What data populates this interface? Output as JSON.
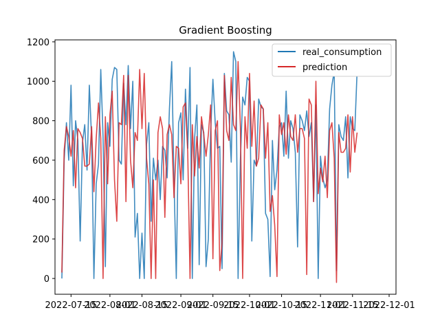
{
  "chart_data": {
    "type": "line",
    "title": "Gradient Boosting",
    "xlabel": "",
    "ylabel": "",
    "x_ticks": [
      "2022-07-15",
      "2022-08-01",
      "2022-08-15",
      "2022-09-01",
      "2022-09-15",
      "2022-10-01",
      "2022-10-15",
      "2022-11-01",
      "2022-11-15",
      "2022-12-01"
    ],
    "y_ticks": [
      0,
      200,
      400,
      600,
      800,
      1000,
      1200
    ],
    "ylim": [
      -80,
      1210
    ],
    "xlim": [
      "2022-07-08",
      "2022-12-04"
    ],
    "legend_position": "top-right",
    "grid": false,
    "series": [
      {
        "name": "real_consumption",
        "color": "#1f77b4",
        "values": [
          0,
          600,
          790,
          600,
          980,
          470,
          800,
          700,
          190,
          690,
          780,
          550,
          980,
          710,
          0,
          480,
          580,
          1060,
          720,
          60,
          790,
          670,
          1010,
          1070,
          1060,
          600,
          580,
          990,
          780,
          1080,
          760,
          1000,
          210,
          330,
          0,
          230,
          0,
          680,
          790,
          290,
          610,
          500,
          600,
          400,
          670,
          650,
          510,
          860,
          1100,
          500,
          0,
          790,
          840,
          500,
          960,
          660,
          1070,
          0,
          710,
          880,
          70,
          780,
          740,
          60,
          200,
          740,
          1010,
          790,
          660,
          670,
          50,
          1040,
          850,
          830,
          590,
          1150,
          1100,
          0,
          600,
          920,
          880,
          1020,
          1000,
          190,
          600,
          570,
          910,
          870,
          860,
          330,
          300,
          10,
          700,
          450,
          550,
          770,
          790,
          620,
          950,
          610,
          800,
          760,
          640,
          160,
          830,
          800,
          750,
          850,
          720,
          790,
          390,
          880,
          0,
          620,
          510,
          460,
          500,
          860,
          980,
          1050,
          40,
          780,
          720,
          700,
          820,
          510,
          820,
          760,
          750,
          1050
        ],
        "dates_start": "2022-07-11",
        "step_days": 1
      },
      {
        "name": "prediction",
        "color": "#d62728",
        "values": [
          30,
          650,
          770,
          720,
          620,
          750,
          460,
          760,
          740,
          710,
          570,
          570,
          580,
          770,
          440,
          710,
          890,
          710,
          0,
          820,
          480,
          830,
          950,
          500,
          290,
          790,
          780,
          1030,
          390,
          1030,
          600,
          460,
          740,
          700,
          1060,
          760,
          1040,
          610,
          480,
          0,
          500,
          0,
          740,
          820,
          760,
          310,
          730,
          780,
          730,
          410,
          670,
          660,
          480,
          870,
          890,
          640,
          0,
          780,
          520,
          720,
          560,
          820,
          730,
          620,
          730,
          880,
          100,
          750,
          800,
          40,
          180,
          1030,
          750,
          700,
          1020,
          780,
          750,
          1100,
          770,
          0,
          820,
          660,
          1040,
          670,
          900,
          570,
          610,
          880,
          860,
          610,
          790,
          340,
          420,
          270,
          10,
          830,
          730,
          790,
          630,
          830,
          720,
          700,
          830,
          640,
          760,
          760,
          710,
          20,
          910,
          880,
          390,
          1000,
          430,
          560,
          490,
          620,
          410,
          750,
          790,
          610,
          -20,
          740,
          640,
          640,
          660,
          830,
          540,
          820,
          640,
          740
        ],
        "dates_start": "2022-07-11",
        "step_days": 1
      }
    ]
  }
}
